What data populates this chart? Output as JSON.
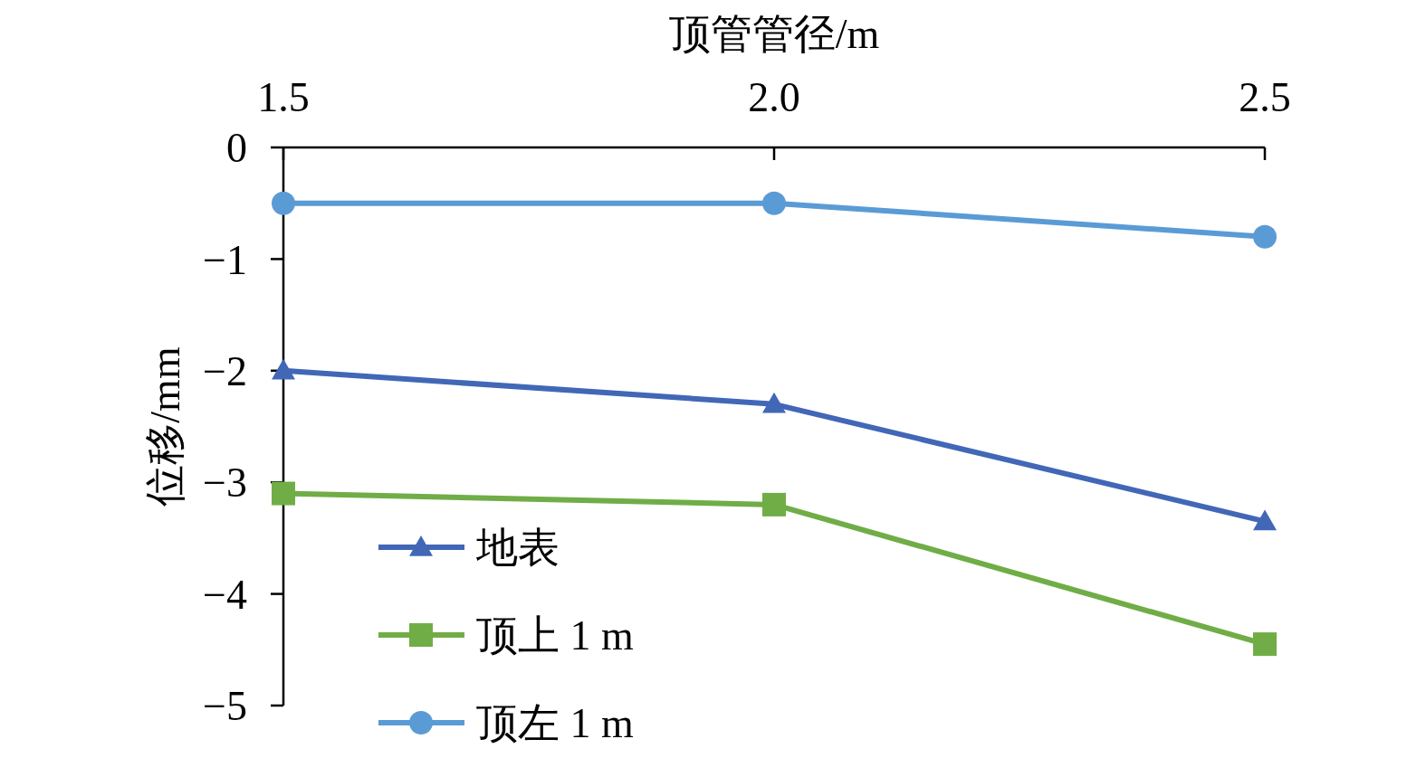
{
  "chart_data": {
    "type": "line",
    "xlabel": "顶管管径/m",
    "ylabel": "位移/mm",
    "x": [
      1.5,
      2.0,
      2.5
    ],
    "xlim": [
      1.5,
      2.5
    ],
    "xticks": [
      1.5,
      {
        "value": 2,
        "label": "2.0"
      },
      2.5
    ],
    "ylim": [
      -5,
      0
    ],
    "yticks": [
      {
        "value": -5,
        "label": "−5"
      },
      {
        "value": -4,
        "label": "−4"
      },
      {
        "value": -3,
        "label": "−3"
      },
      {
        "value": -2,
        "label": "−2"
      },
      {
        "value": -1,
        "label": "−1"
      },
      0
    ],
    "series": [
      {
        "name": "地表",
        "color": "#4267b7",
        "marker": "triangle",
        "values": [
          -2.0,
          -2.3,
          -3.35
        ]
      },
      {
        "name": "顶上 1 m",
        "color": "#70ad47",
        "marker": "square",
        "values": [
          -3.1,
          -3.2,
          -4.45
        ]
      },
      {
        "name": "顶左 1 m",
        "color": "#5b9bd5",
        "marker": "circle",
        "values": [
          -0.5,
          -0.5,
          -0.8
        ]
      }
    ],
    "legend": "bottom left",
    "grid": false
  }
}
